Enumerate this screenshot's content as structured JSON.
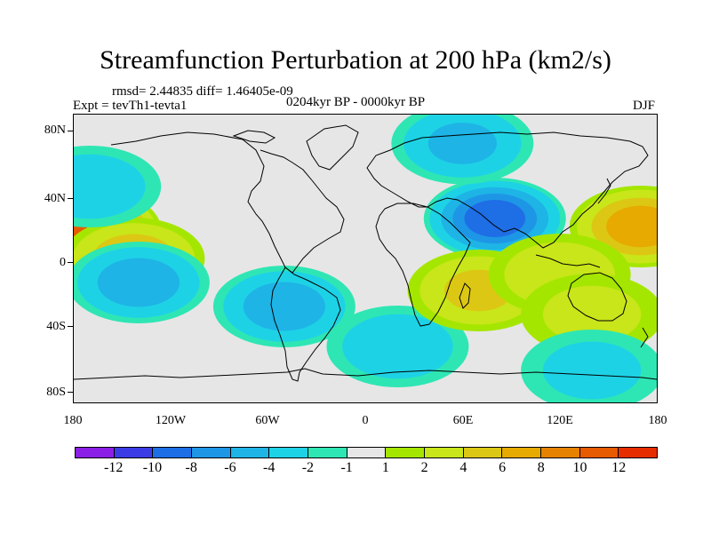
{
  "title": "Streamfunction Perturbation at 200 hPa (km2/s)",
  "stats_line": "rmsd= 2.44835 diff= 1.46405e-09",
  "experiment_line": "Expt = tevTh1-tevta1",
  "period_line": "0204kyr BP - 0000kyr BP",
  "season": "DJF",
  "map": {
    "projection": "cylindrical-equidistant",
    "lon_range": [
      -180,
      180
    ],
    "lat_range": [
      -90,
      90
    ],
    "lat_labels": [
      "80N",
      "40N",
      "0",
      "40S",
      "80S"
    ],
    "lon_labels": [
      "180",
      "120W",
      "60W",
      "0",
      "60E",
      "120E",
      "180"
    ]
  },
  "colorbar": {
    "colors": [
      "#8b1fe6",
      "#3c3ce6",
      "#1e6ee6",
      "#1e96e6",
      "#1eb4e6",
      "#1ed2e6",
      "#2ee6b4",
      "#e6e6e6",
      "#a5e600",
      "#c8e619",
      "#dcc814",
      "#e6aa00",
      "#e68200",
      "#e65a00",
      "#e62d00"
    ],
    "labels": [
      "-12",
      "-10",
      "-8",
      "-6",
      "-4",
      "-2",
      "-1",
      "1",
      "2",
      "4",
      "6",
      "8",
      "10",
      "12"
    ]
  },
  "anomaly_centers": [
    {
      "lon": -170,
      "lat": 18,
      "value": 11,
      "sign": "positive"
    },
    {
      "lon": -143,
      "lat": 0,
      "value": 5,
      "sign": "positive"
    },
    {
      "lon": -170,
      "lat": 45,
      "value": -3,
      "sign": "negative"
    },
    {
      "lon": -140,
      "lat": -15,
      "value": -5,
      "sign": "negative"
    },
    {
      "lon": -50,
      "lat": -30,
      "value": -5,
      "sign": "negative"
    },
    {
      "lon": 80,
      "lat": 25,
      "value": -9,
      "sign": "negative"
    },
    {
      "lon": 60,
      "lat": 72,
      "value": -4,
      "sign": "negative"
    },
    {
      "lon": 20,
      "lat": -55,
      "value": -3,
      "sign": "negative"
    },
    {
      "lon": 170,
      "lat": 20,
      "value": 7,
      "sign": "positive"
    },
    {
      "lon": 70,
      "lat": -20,
      "value": 4,
      "sign": "positive"
    },
    {
      "lon": 120,
      "lat": -10,
      "value": 3,
      "sign": "positive"
    },
    {
      "lon": 140,
      "lat": -35,
      "value": 2,
      "sign": "positive"
    },
    {
      "lon": 140,
      "lat": -70,
      "value": -2,
      "sign": "negative"
    }
  ]
}
